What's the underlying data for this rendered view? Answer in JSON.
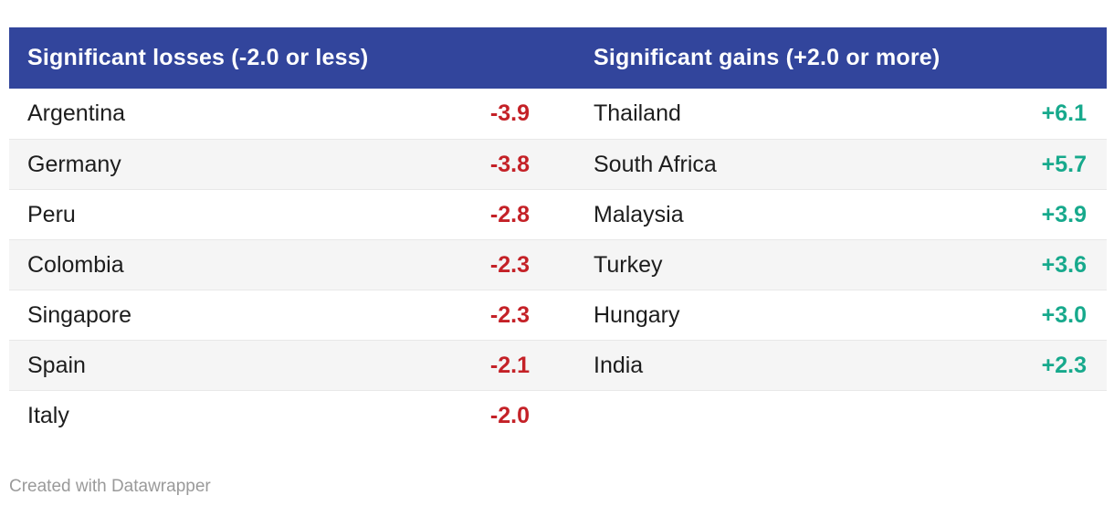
{
  "header": {
    "losses": "Significant losses (-2.0 or less)",
    "gains": "Significant gains (+2.0 or more)"
  },
  "attribution": "Created with Datawrapper",
  "colors": {
    "header_bg": "#32459c",
    "header_text": "#ffffff",
    "negative": "#c42127",
    "positive": "#17a98c",
    "row_alt": "#f5f5f5",
    "row_border": "#e8e8e8",
    "text": "#1d1d1d",
    "attribution_text": "#9a9a9a"
  },
  "chart_data": {
    "type": "table",
    "title": "",
    "column_groups": [
      "Significant losses (-2.0 or less)",
      "Significant gains (+2.0 or more)"
    ],
    "losses": [
      {
        "country": "Argentina",
        "value": -3.9
      },
      {
        "country": "Germany",
        "value": -3.8
      },
      {
        "country": "Peru",
        "value": -2.8
      },
      {
        "country": "Colombia",
        "value": -2.3
      },
      {
        "country": "Singapore",
        "value": -2.3
      },
      {
        "country": "Spain",
        "value": -2.1
      },
      {
        "country": "Italy",
        "value": -2.0
      }
    ],
    "gains": [
      {
        "country": "Thailand",
        "value": 6.1
      },
      {
        "country": "South Africa",
        "value": 5.7
      },
      {
        "country": "Malaysia",
        "value": 3.9
      },
      {
        "country": "Turkey",
        "value": 3.6
      },
      {
        "country": "Hungary",
        "value": 3.0
      },
      {
        "country": "India",
        "value": 2.3
      }
    ],
    "rows": [
      {
        "loss_country": "Argentina",
        "loss_value": "-3.9",
        "gain_country": "Thailand",
        "gain_value": "+6.1"
      },
      {
        "loss_country": "Germany",
        "loss_value": "-3.8",
        "gain_country": "South Africa",
        "gain_value": "+5.7"
      },
      {
        "loss_country": "Peru",
        "loss_value": "-2.8",
        "gain_country": "Malaysia",
        "gain_value": "+3.9"
      },
      {
        "loss_country": "Colombia",
        "loss_value": "-2.3",
        "gain_country": "Turkey",
        "gain_value": "+3.6"
      },
      {
        "loss_country": "Singapore",
        "loss_value": "-2.3",
        "gain_country": "Hungary",
        "gain_value": "+3.0"
      },
      {
        "loss_country": "Spain",
        "loss_value": "-2.1",
        "gain_country": "India",
        "gain_value": "+2.3"
      },
      {
        "loss_country": "Italy",
        "loss_value": "-2.0",
        "gain_country": "",
        "gain_value": ""
      }
    ]
  }
}
